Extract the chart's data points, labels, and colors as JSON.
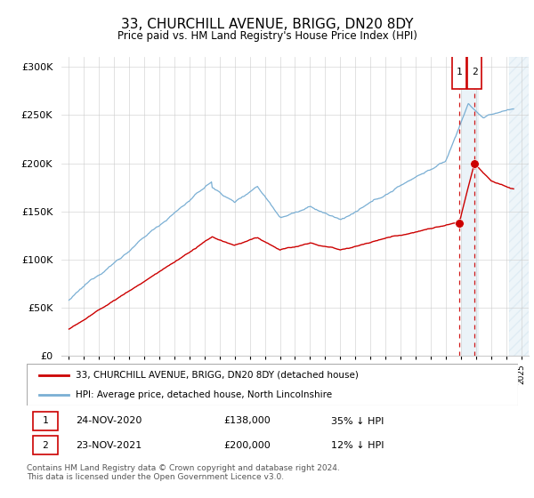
{
  "title": "33, CHURCHILL AVENUE, BRIGG, DN20 8DY",
  "subtitle": "Price paid vs. HM Land Registry's House Price Index (HPI)",
  "ytick_values": [
    0,
    50000,
    100000,
    150000,
    200000,
    250000,
    300000
  ],
  "ylim": [
    0,
    310000
  ],
  "xlim_start": 1994.5,
  "xlim_end": 2025.5,
  "hpi_color": "#7aafd4",
  "price_color": "#cc0000",
  "dashed_line_color": "#cc0000",
  "legend_label_red": "33, CHURCHILL AVENUE, BRIGG, DN20 8DY (detached house)",
  "legend_label_blue": "HPI: Average price, detached house, North Lincolnshire",
  "transaction1_label": "1",
  "transaction1_date": "24-NOV-2020",
  "transaction1_price": "£138,000",
  "transaction1_hpi": "35% ↓ HPI",
  "transaction2_label": "2",
  "transaction2_date": "23-NOV-2021",
  "transaction2_price": "£200,000",
  "transaction2_hpi": "12% ↓ HPI",
  "footer": "Contains HM Land Registry data © Crown copyright and database right 2024.\nThis data is licensed under the Open Government Licence v3.0.",
  "sale1_year": 2020.9,
  "sale1_value": 138000,
  "sale2_year": 2021.9,
  "sale2_value": 200000,
  "hatch_start": 2021.0,
  "hatch_end": 2022.2,
  "future_start": 2024.2,
  "future_end": 2025.5
}
